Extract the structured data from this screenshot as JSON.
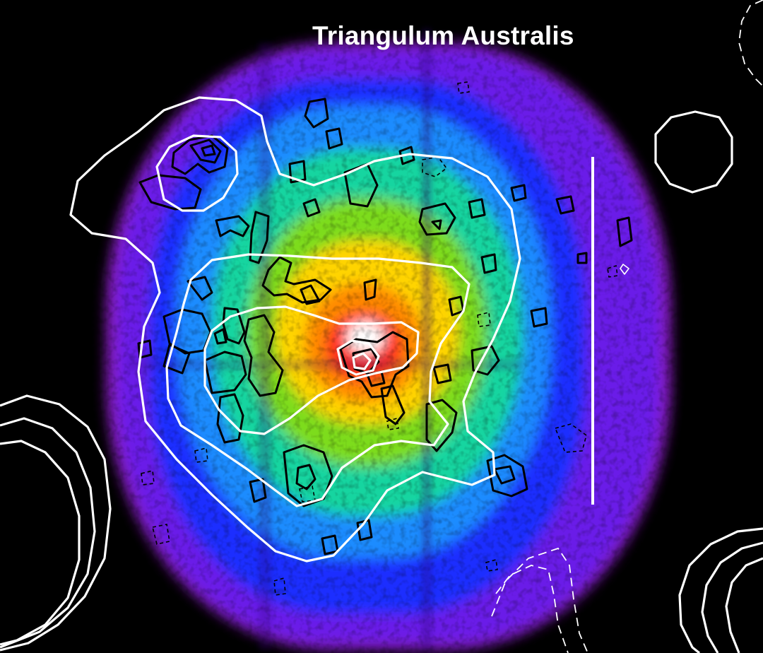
{
  "title": "Triangulum Australis",
  "colors": {
    "background": "#000000",
    "colormap": [
      "#ffffff",
      "#ff2a1a",
      "#ff8a00",
      "#ffd400",
      "#7ddc1f",
      "#14d5a0",
      "#1a8cff",
      "#1a2dff",
      "#6a1ee8",
      "#8e1fc6"
    ],
    "radio_contours": "#ffffff",
    "temperature_contours": "#000000",
    "scale_bar": "#ffffff"
  }
}
